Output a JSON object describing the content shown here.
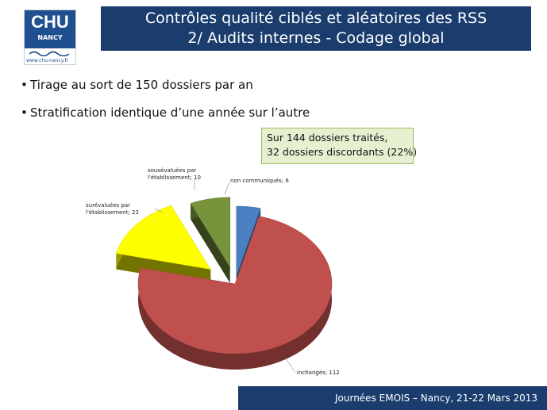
{
  "logo": {
    "name": "CHU",
    "subname": "NANCY",
    "url": "www.chu-nancy.fr"
  },
  "title": {
    "line1": "Contrôles qualité ciblés et aléatoires des RSS",
    "line2": "2/ Audits internes - Codage global"
  },
  "bullets": [
    "Tirage au sort de 150 dossiers par an",
    "Stratification identique d’une année sur l’autre"
  ],
  "callout": {
    "line1": "Sur 144 dossiers traités,",
    "line2": "32 dossiers discordants (22%)"
  },
  "chart_data": {
    "type": "pie",
    "slices": [
      {
        "label": "non communiqués",
        "value": 6,
        "color": "#4a7fc1",
        "text": "non communiqués; 6"
      },
      {
        "label": "inchangés",
        "value": 112,
        "color": "#c0504d",
        "text": "inchangés; 112"
      },
      {
        "label": "surévaluées par l'établissement",
        "value": 22,
        "color": "#ffff00",
        "line1": "surévaluées par",
        "line2": "l'établissement; 22"
      },
      {
        "label": "sousévaluées par l'établissement",
        "value": 10,
        "color": "#77933c",
        "line1": "sousévaluées par",
        "line2": "l'établissement; 10"
      }
    ]
  },
  "footer": {
    "text": "Journées EMOIS – Nancy, 21-22 Mars 2013"
  }
}
